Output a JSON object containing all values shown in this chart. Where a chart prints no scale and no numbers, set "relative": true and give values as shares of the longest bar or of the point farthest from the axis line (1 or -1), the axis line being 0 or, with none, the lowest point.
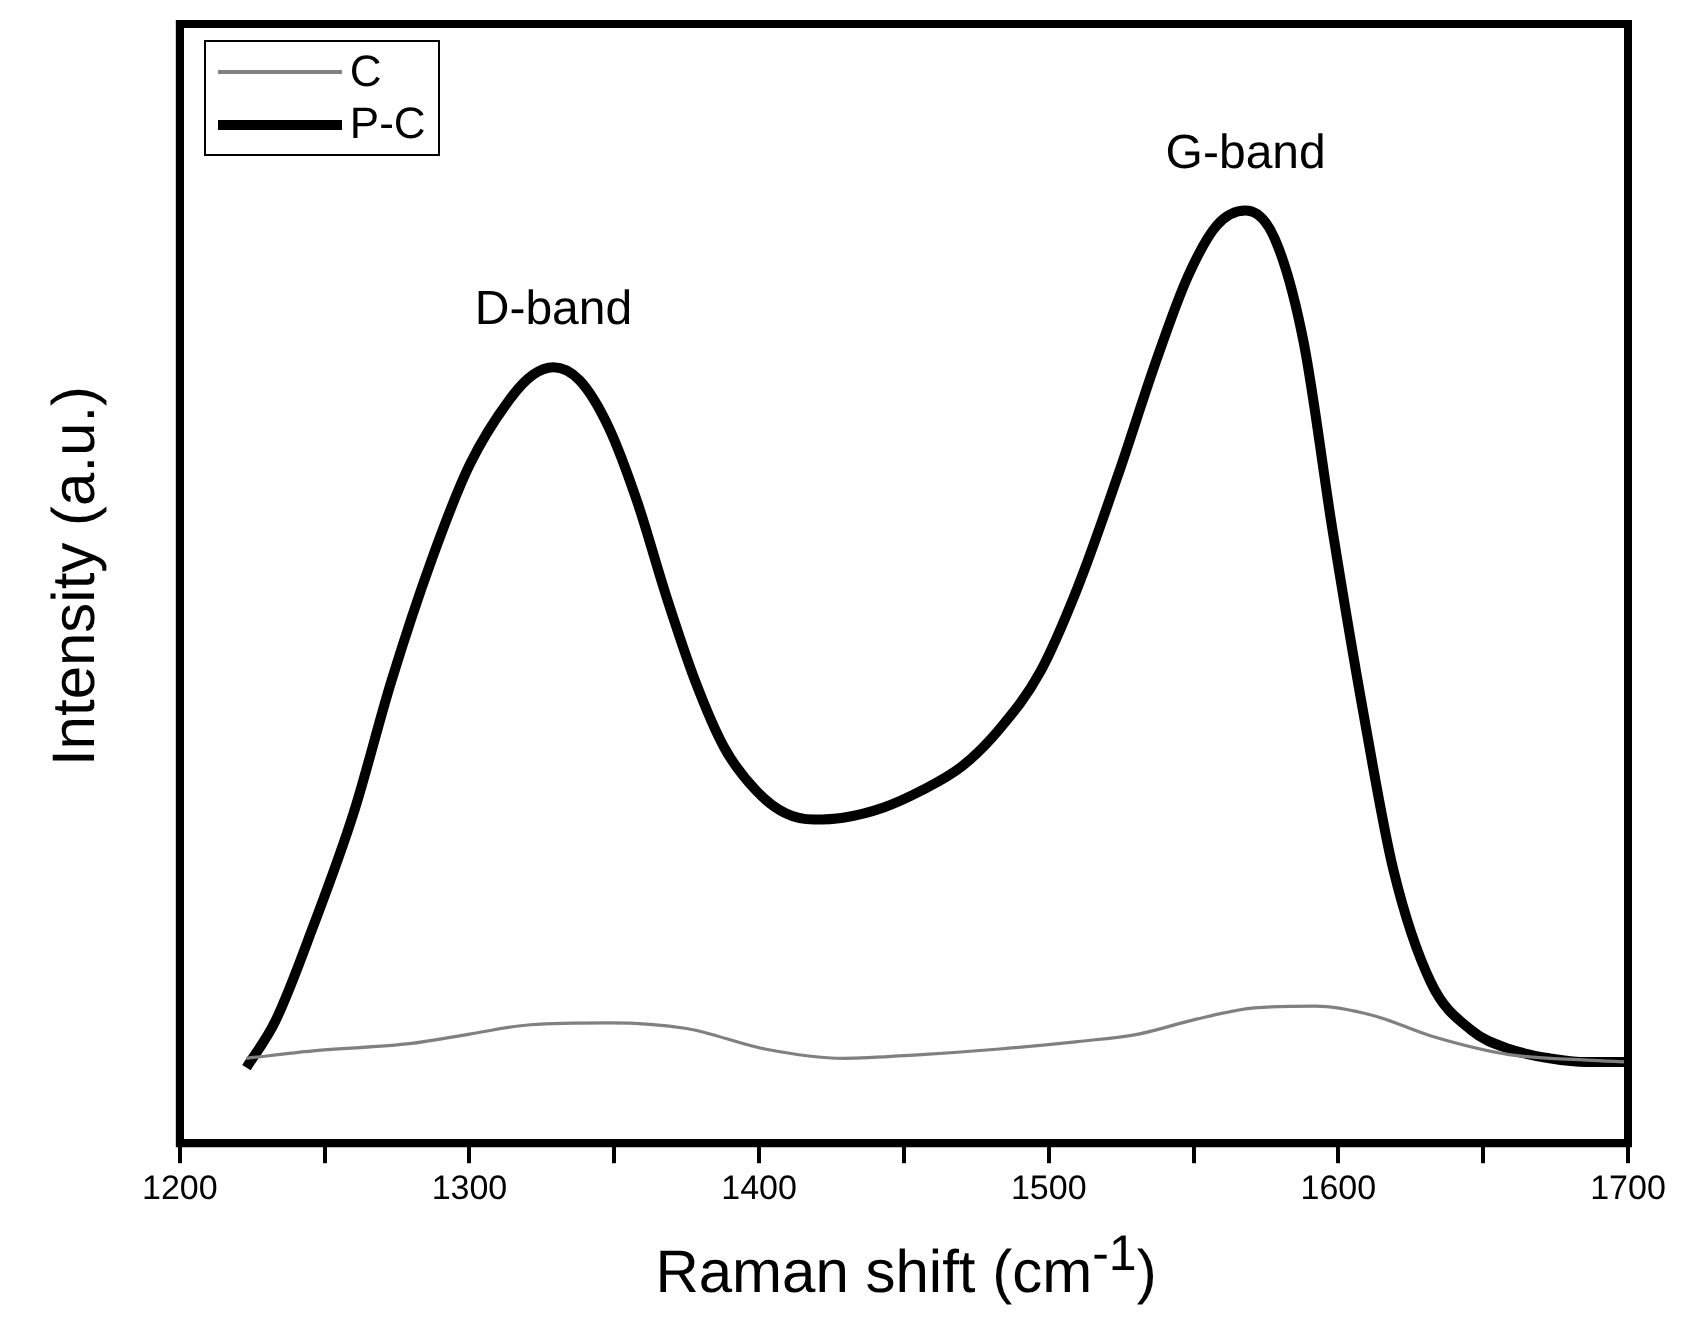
{
  "chart_data": {
    "type": "line",
    "xlabel": "Raman shift (cm$^{-1}$)",
    "ylabel": "Intensity (a.u.)",
    "relative": true,
    "legend": "top left",
    "xlim": [
      1200,
      1700
    ],
    "xticks": [
      1200,
      {
        "value": 1250,
        "label": null
      },
      1300,
      {
        "value": 1350,
        "label": null
      },
      1400,
      {
        "value": 1450,
        "label": null
      },
      1500,
      {
        "value": 1550,
        "label": null
      },
      1600,
      {
        "value": 1650,
        "label": null
      },
      1700
    ],
    "annotations": [
      {
        "text": "D-band",
        "x": 1329,
        "y": 0.832
      },
      {
        "text": "G-band",
        "x": 1568,
        "y": 1
      }
    ],
    "series": [
      {
        "name": "C",
        "color": "#808080",
        "x": [
          1223,
          1246,
          1280,
          1300,
          1321,
          1348,
          1375,
          1402,
          1429,
          1456,
          1483,
          1510,
          1531,
          1551,
          1571,
          1592,
          1612,
          1632,
          1659,
          1686,
          1700
        ],
        "values": [
          0.091,
          0.099,
          0.107,
          0.117,
          0.127,
          0.129,
          0.123,
          0.101,
          0.091,
          0.095,
          0.101,
          0.109,
          0.117,
          0.133,
          0.145,
          0.147,
          0.137,
          0.115,
          0.095,
          0.089,
          0.087
        ]
      },
      {
        "name": "P-C",
        "color": "#000000",
        "x": [
          1223,
          1233,
          1246,
          1260,
          1273,
          1287,
          1300,
          1314,
          1322,
          1329,
          1338,
          1348,
          1358,
          1368,
          1378,
          1388,
          1399,
          1409,
          1419,
          1429,
          1443,
          1456,
          1470,
          1483,
          1497,
          1510,
          1524,
          1537,
          1548,
          1558,
          1568,
          1578,
          1588,
          1598,
          1609,
          1619,
          1632,
          1646,
          1659,
          1673,
          1686,
          1700
        ],
        "values": [
          0.081,
          0.131,
          0.232,
          0.354,
          0.495,
          0.626,
          0.727,
          0.798,
          0.824,
          0.832,
          0.818,
          0.768,
          0.687,
          0.586,
          0.495,
          0.424,
          0.378,
          0.354,
          0.347,
          0.349,
          0.36,
          0.378,
          0.404,
          0.444,
          0.505,
          0.596,
          0.717,
          0.838,
          0.929,
          0.984,
          1,
          0.97,
          0.859,
          0.657,
          0.455,
          0.293,
          0.172,
          0.121,
          0.101,
          0.091,
          0.087,
          0.087
        ]
      }
    ]
  }
}
